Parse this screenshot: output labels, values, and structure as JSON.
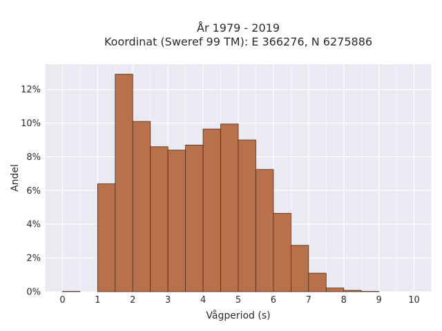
{
  "chart_data": {
    "type": "bar",
    "title_line1": "År 1979 - 2019",
    "title_line2": "Koordinat (Sweref 99 TM): E 366276, N 6275886",
    "xlabel": "Vågperiod (s)",
    "ylabel": "Andel",
    "bin_width": 0.5,
    "bins": [
      {
        "x0": 0.0,
        "value": 0.02
      },
      {
        "x0": 0.5,
        "value": 0.0
      },
      {
        "x0": 1.0,
        "value": 6.4
      },
      {
        "x0": 1.5,
        "value": 12.9
      },
      {
        "x0": 2.0,
        "value": 10.1
      },
      {
        "x0": 2.5,
        "value": 8.6
      },
      {
        "x0": 3.0,
        "value": 8.4
      },
      {
        "x0": 3.5,
        "value": 8.7
      },
      {
        "x0": 4.0,
        "value": 9.65
      },
      {
        "x0": 4.5,
        "value": 9.95
      },
      {
        "x0": 5.0,
        "value": 9.0
      },
      {
        "x0": 5.5,
        "value": 7.25
      },
      {
        "x0": 6.0,
        "value": 4.65
      },
      {
        "x0": 6.5,
        "value": 2.75
      },
      {
        "x0": 7.0,
        "value": 1.1
      },
      {
        "x0": 7.5,
        "value": 0.22
      },
      {
        "x0": 8.0,
        "value": 0.08
      },
      {
        "x0": 8.5,
        "value": 0.02
      }
    ],
    "x_ticks": [
      0,
      1,
      2,
      3,
      4,
      5,
      6,
      7,
      8,
      9,
      10
    ],
    "x_tick_labels": [
      "0",
      "1",
      "2",
      "3",
      "4",
      "5",
      "6",
      "7",
      "8",
      "9",
      "10"
    ],
    "y_ticks": [
      0,
      2,
      4,
      6,
      8,
      10,
      12
    ],
    "y_tick_labels": [
      "0%",
      "2%",
      "4%",
      "6%",
      "8%",
      "10%",
      "12%"
    ],
    "xlim": [
      -0.5,
      10.5
    ],
    "ylim": [
      0,
      13.5
    ],
    "grid": true,
    "colors": {
      "bar_fill": "#b8714b",
      "bar_edge": "#4a2c1c",
      "plot_background": "#eaeaf2",
      "grid": "#ffffff"
    }
  }
}
